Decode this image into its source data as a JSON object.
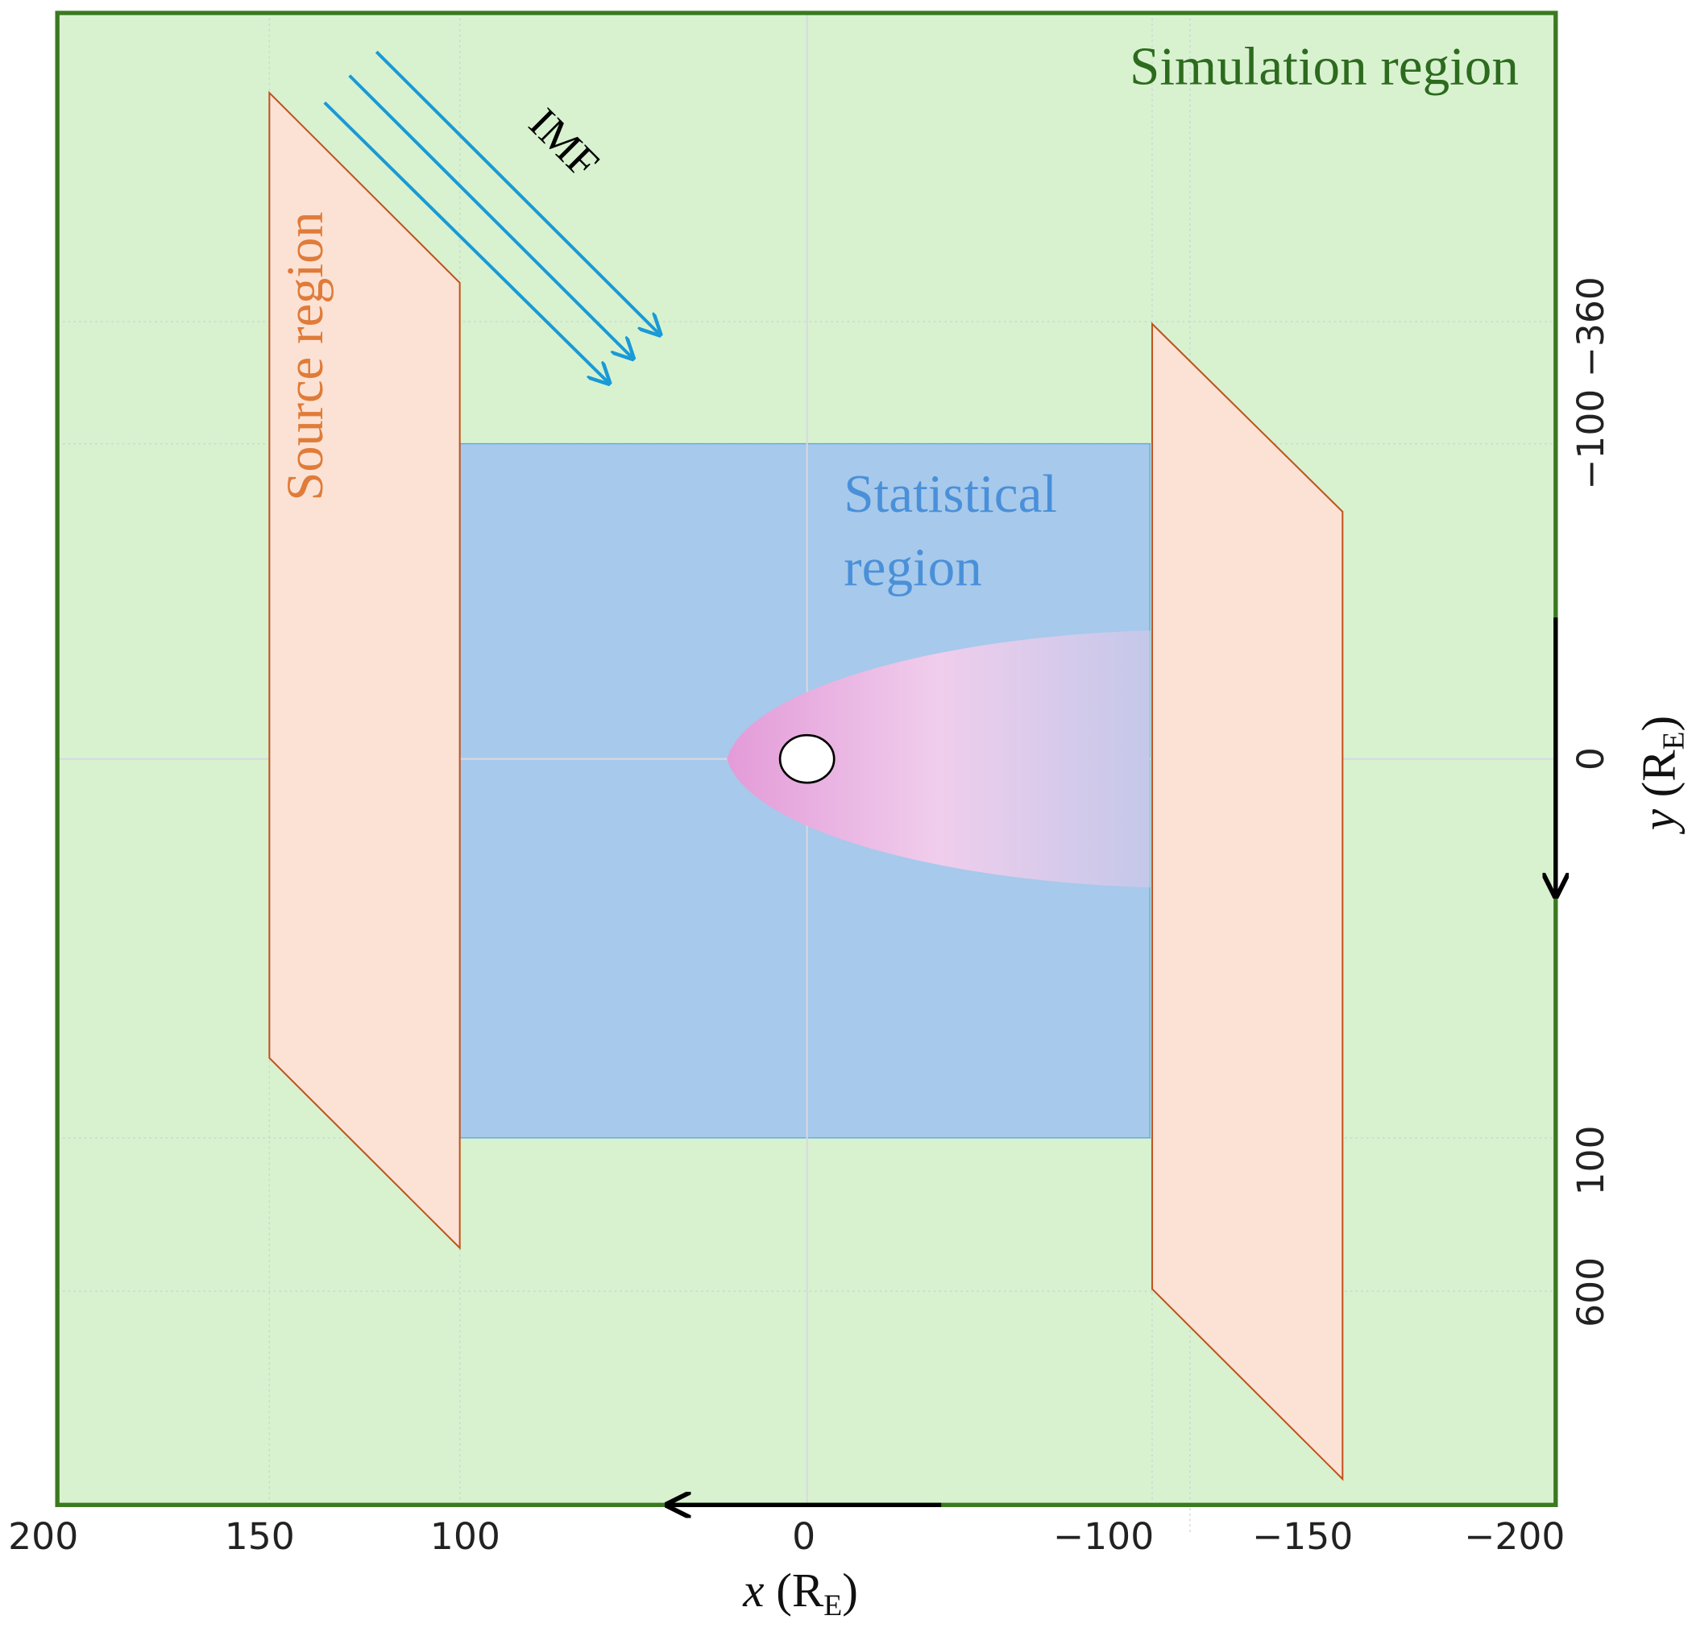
{
  "title": "Simulation region",
  "source_label": "Source region",
  "statistical_label": [
    "Statistical",
    "region"
  ],
  "imf_label": "IMF",
  "x_ticks": [
    "200",
    "150",
    "100",
    "0",
    "−100",
    "−150",
    "−200"
  ],
  "y_ticks": [
    "−100 −360",
    "0",
    "100",
    "600"
  ],
  "x_label": [
    "x",
    "(R",
    "E",
    ")"
  ],
  "y_label": [
    "y",
    "(R",
    "E",
    ")"
  ]
}
